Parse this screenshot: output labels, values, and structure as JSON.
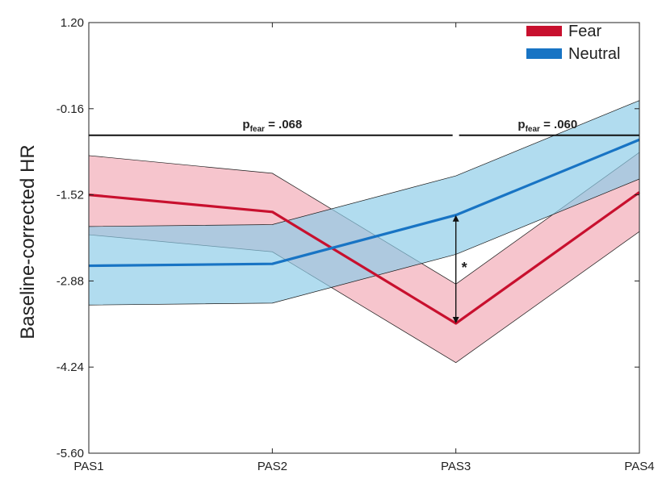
{
  "chart_data": {
    "type": "line",
    "title": "",
    "xlabel": "",
    "ylabel": "Baseline-corrected HR",
    "categories": [
      "PAS1",
      "PAS2",
      "PAS3",
      "PAS4"
    ],
    "yticks": [
      "1.20",
      "-0.16",
      "-1.52",
      "-2.88",
      "-4.24",
      "-5.60"
    ],
    "ylim": [
      -5.6,
      1.2
    ],
    "grid": false,
    "legend_position": "top-right",
    "series": [
      {
        "name": "Fear",
        "color": "#c8102e",
        "band_color": "#f2aab6",
        "values": [
          -1.52,
          -1.79,
          -3.55,
          -1.48
        ],
        "upper": [
          -0.9,
          -1.18,
          -2.93,
          -0.85
        ],
        "lower": [
          -2.15,
          -2.42,
          -4.17,
          -2.1
        ]
      },
      {
        "name": "Neutral",
        "color": "#1874c4",
        "band_color": "#8ccbe8",
        "values": [
          -2.64,
          -2.61,
          -1.84,
          -0.65
        ],
        "upper": [
          -2.02,
          -1.99,
          -1.22,
          -0.03
        ],
        "lower": [
          -3.26,
          -3.23,
          -2.46,
          -1.27
        ]
      }
    ],
    "annotations": [
      {
        "label": "p",
        "sub": "fear",
        "text": " = .068",
        "from": "PAS1",
        "to": "PAS3",
        "y": -0.58
      },
      {
        "label": "p",
        "sub": "fear",
        "text": " = .060",
        "from": "PAS3",
        "to": "PAS4",
        "y": -0.58
      }
    ],
    "significance": {
      "category": "PAS3",
      "marker": "*",
      "from": -1.84,
      "to": -3.55
    }
  }
}
